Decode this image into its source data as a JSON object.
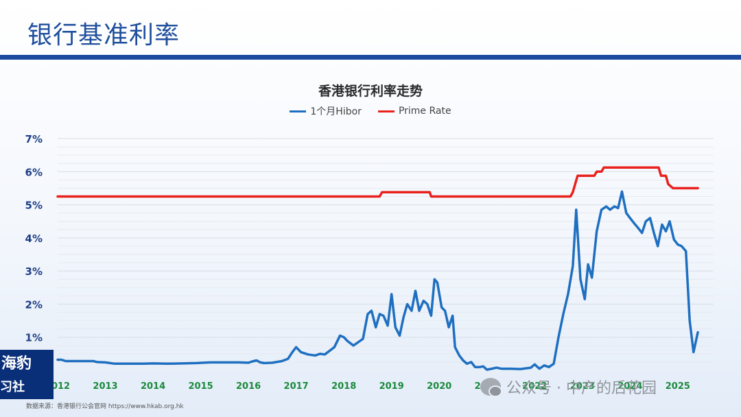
{
  "page": {
    "title": "银行基准利率"
  },
  "brand": {
    "line1": "海豹",
    "line2": "习社"
  },
  "source": "数据来源：香港银行公会官网 https://www.hkab.org.hk",
  "watermark": {
    "icon": "wechat-icon",
    "text": "公众号 · 中产的后花园"
  },
  "colors": {
    "hibor": "#1f6fc0",
    "prime": "#e8211c",
    "title": "#1f4e9c",
    "xtick": "#1a8a3c",
    "ytick": "#1f3f86"
  },
  "chart_data": {
    "type": "line",
    "title": "香港银行利率走势",
    "ylim": [
      0,
      7
    ],
    "xlim": [
      2012,
      2025.75
    ],
    "yticks": [
      1,
      2,
      3,
      4,
      5,
      6,
      7
    ],
    "ytick_labels": [
      "1%",
      "2%",
      "3%",
      "4%",
      "5%",
      "6%",
      "7%"
    ],
    "xticks": [
      2012,
      2013,
      2014,
      2015,
      2016,
      2017,
      2018,
      2019,
      2020,
      2021,
      2022,
      2023,
      2024,
      2025
    ],
    "xtick_labels": [
      "2012",
      "2013",
      "2014",
      "2015",
      "2016",
      "2017",
      "2018",
      "2019",
      "2020",
      "2021",
      "2022",
      "2023",
      "2024",
      "2025"
    ],
    "grid": true,
    "legend": "top-center",
    "series": [
      {
        "name": "1个月Hibor",
        "points": [
          [
            2012.0,
            0.32
          ],
          [
            2012.08,
            0.32
          ],
          [
            2012.17,
            0.28
          ],
          [
            2012.33,
            0.28
          ],
          [
            2012.5,
            0.28
          ],
          [
            2012.75,
            0.28
          ],
          [
            2012.83,
            0.25
          ],
          [
            2013.0,
            0.24
          ],
          [
            2013.1,
            0.22
          ],
          [
            2013.2,
            0.2
          ],
          [
            2013.5,
            0.2
          ],
          [
            2013.8,
            0.2
          ],
          [
            2014.0,
            0.21
          ],
          [
            2014.3,
            0.2
          ],
          [
            2014.6,
            0.21
          ],
          [
            2014.9,
            0.22
          ],
          [
            2015.2,
            0.24
          ],
          [
            2015.5,
            0.24
          ],
          [
            2015.8,
            0.24
          ],
          [
            2016.0,
            0.23
          ],
          [
            2016.08,
            0.27
          ],
          [
            2016.17,
            0.3
          ],
          [
            2016.25,
            0.24
          ],
          [
            2016.33,
            0.22
          ],
          [
            2016.5,
            0.23
          ],
          [
            2016.7,
            0.28
          ],
          [
            2016.83,
            0.35
          ],
          [
            2016.92,
            0.55
          ],
          [
            2017.0,
            0.7
          ],
          [
            2017.1,
            0.55
          ],
          [
            2017.25,
            0.48
          ],
          [
            2017.4,
            0.45
          ],
          [
            2017.5,
            0.5
          ],
          [
            2017.6,
            0.48
          ],
          [
            2017.8,
            0.7
          ],
          [
            2017.92,
            1.05
          ],
          [
            2018.0,
            1.0
          ],
          [
            2018.08,
            0.88
          ],
          [
            2018.2,
            0.75
          ],
          [
            2018.3,
            0.85
          ],
          [
            2018.4,
            0.95
          ],
          [
            2018.5,
            1.7
          ],
          [
            2018.58,
            1.8
          ],
          [
            2018.67,
            1.3
          ],
          [
            2018.75,
            1.7
          ],
          [
            2018.83,
            1.65
          ],
          [
            2018.92,
            1.35
          ],
          [
            2019.0,
            2.3
          ],
          [
            2019.08,
            1.3
          ],
          [
            2019.17,
            1.05
          ],
          [
            2019.25,
            1.6
          ],
          [
            2019.33,
            2.0
          ],
          [
            2019.42,
            1.8
          ],
          [
            2019.5,
            2.4
          ],
          [
            2019.58,
            1.8
          ],
          [
            2019.67,
            2.1
          ],
          [
            2019.75,
            2.0
          ],
          [
            2019.83,
            1.65
          ],
          [
            2019.9,
            2.75
          ],
          [
            2019.96,
            2.65
          ],
          [
            2020.05,
            1.9
          ],
          [
            2020.12,
            1.8
          ],
          [
            2020.2,
            1.3
          ],
          [
            2020.28,
            1.65
          ],
          [
            2020.33,
            0.7
          ],
          [
            2020.42,
            0.45
          ],
          [
            2020.5,
            0.3
          ],
          [
            2020.58,
            0.2
          ],
          [
            2020.67,
            0.25
          ],
          [
            2020.75,
            0.1
          ],
          [
            2020.85,
            0.1
          ],
          [
            2020.92,
            0.12
          ],
          [
            2021.0,
            0.02
          ],
          [
            2021.1,
            0.05
          ],
          [
            2021.2,
            0.08
          ],
          [
            2021.3,
            0.05
          ],
          [
            2021.5,
            0.05
          ],
          [
            2021.7,
            0.04
          ],
          [
            2021.92,
            0.08
          ],
          [
            2022.0,
            0.18
          ],
          [
            2022.1,
            0.05
          ],
          [
            2022.2,
            0.15
          ],
          [
            2022.3,
            0.1
          ],
          [
            2022.4,
            0.2
          ],
          [
            2022.5,
            1.0
          ],
          [
            2022.6,
            1.7
          ],
          [
            2022.7,
            2.3
          ],
          [
            2022.8,
            3.15
          ],
          [
            2022.87,
            4.85
          ],
          [
            2022.96,
            2.75
          ],
          [
            2023.05,
            2.15
          ],
          [
            2023.12,
            3.2
          ],
          [
            2023.2,
            2.8
          ],
          [
            2023.3,
            4.2
          ],
          [
            2023.4,
            4.85
          ],
          [
            2023.5,
            4.95
          ],
          [
            2023.58,
            4.85
          ],
          [
            2023.67,
            4.95
          ],
          [
            2023.75,
            4.9
          ],
          [
            2023.83,
            5.4
          ],
          [
            2023.92,
            4.75
          ],
          [
            2024.0,
            4.6
          ],
          [
            2024.08,
            4.45
          ],
          [
            2024.17,
            4.3
          ],
          [
            2024.25,
            4.15
          ],
          [
            2024.33,
            4.5
          ],
          [
            2024.42,
            4.6
          ],
          [
            2024.5,
            4.15
          ],
          [
            2024.58,
            3.75
          ],
          [
            2024.67,
            4.4
          ],
          [
            2024.75,
            4.2
          ],
          [
            2024.83,
            4.5
          ],
          [
            2024.92,
            3.95
          ],
          [
            2025.0,
            3.8
          ],
          [
            2025.08,
            3.75
          ],
          [
            2025.17,
            3.6
          ],
          [
            2025.25,
            1.5
          ],
          [
            2025.33,
            0.55
          ],
          [
            2025.42,
            1.15
          ]
        ]
      },
      {
        "name": "Prime Rate",
        "points": [
          [
            2012.0,
            5.25
          ],
          [
            2018.75,
            5.25
          ],
          [
            2018.8,
            5.38
          ],
          [
            2019.8,
            5.38
          ],
          [
            2019.83,
            5.25
          ],
          [
            2022.75,
            5.25
          ],
          [
            2022.8,
            5.38
          ],
          [
            2022.9,
            5.875
          ],
          [
            2023.25,
            5.875
          ],
          [
            2023.3,
            6.0
          ],
          [
            2023.4,
            6.0
          ],
          [
            2023.45,
            6.125
          ],
          [
            2024.6,
            6.125
          ],
          [
            2024.65,
            5.875
          ],
          [
            2024.75,
            5.875
          ],
          [
            2024.8,
            5.625
          ],
          [
            2024.9,
            5.5
          ],
          [
            2025.42,
            5.5
          ]
        ]
      }
    ]
  }
}
